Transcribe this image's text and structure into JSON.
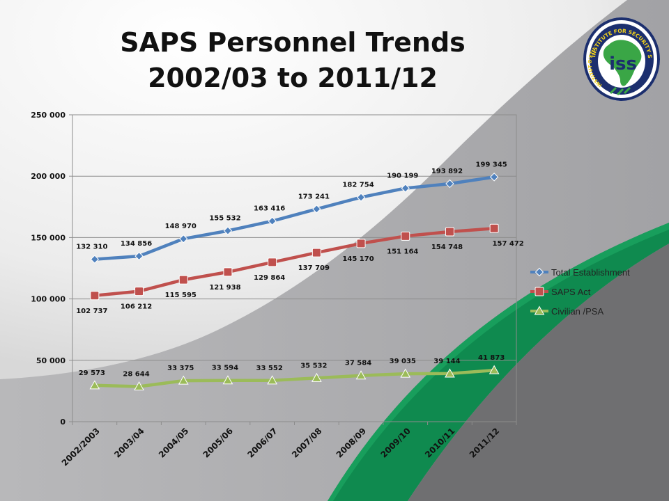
{
  "slide": {
    "title_line1": "SAPS Personnel Trends",
    "title_line2": "2002/03 to 2011/12",
    "colors": {
      "background_light": "#e6e6e6",
      "background_grey": "#a9a9ab",
      "ribbon_green": "#0f8a4f",
      "ribbon_dark": "#6e6e70"
    }
  },
  "logo": {
    "text_ring_top": "INSTITUTE FOR SECURITY STUDIES",
    "text_ring_left": "INSTITUT D'ETUDES DE SECURITE",
    "monogram": "iss",
    "icon": "africa-map-icon",
    "colors": {
      "navy": "#1c2f6e",
      "green": "#3aa646",
      "yellow": "#f2d21b"
    }
  },
  "chart_data": {
    "type": "line",
    "title": "",
    "xlabel": "",
    "ylabel": "",
    "categories": [
      "2002/2003",
      "2003/04",
      "2004/05",
      "2005/06",
      "2006/07",
      "2007/08",
      "2008/09",
      "2009/10",
      "2010/11",
      "2011/12"
    ],
    "ylim": [
      0,
      250000
    ],
    "yticks": [
      0,
      50000,
      100000,
      150000,
      200000,
      250000
    ],
    "ytick_labels": [
      "0",
      "50 000",
      "100 000",
      "150 000",
      "200 000",
      "250 000"
    ],
    "grid": true,
    "legend_position": "right",
    "series": [
      {
        "name": "Total Establishment",
        "color": "#4f81bd",
        "marker": "diamond",
        "values": [
          132310,
          134856,
          148970,
          155532,
          163416,
          173241,
          182754,
          190199,
          193892,
          199345
        ],
        "labels": [
          "132 310",
          "134 856",
          "148 970",
          "155 532",
          "163 416",
          "173 241",
          "182 754",
          "190 199",
          "193 892",
          "199 345"
        ]
      },
      {
        "name": "SAPS Act",
        "color": "#c0504d",
        "marker": "square",
        "values": [
          102737,
          106212,
          115595,
          121938,
          129864,
          137709,
          145170,
          151164,
          154748,
          157472
        ],
        "labels": [
          "102 737",
          "106 212",
          "115 595",
          "121 938",
          "129 864",
          "137 709",
          "145 170",
          "151 164",
          "154 748",
          "157 472"
        ]
      },
      {
        "name": "Civilian /PSA",
        "color": "#9bbb59",
        "marker": "triangle",
        "values": [
          29573,
          28644,
          33375,
          33594,
          33552,
          35532,
          37584,
          39035,
          39144,
          41873
        ],
        "labels": [
          "29 573",
          "28 644",
          "33 375",
          "33 594",
          "33 552",
          "35 532",
          "37 584",
          "39 035",
          "39 144",
          "41 873"
        ]
      }
    ]
  }
}
